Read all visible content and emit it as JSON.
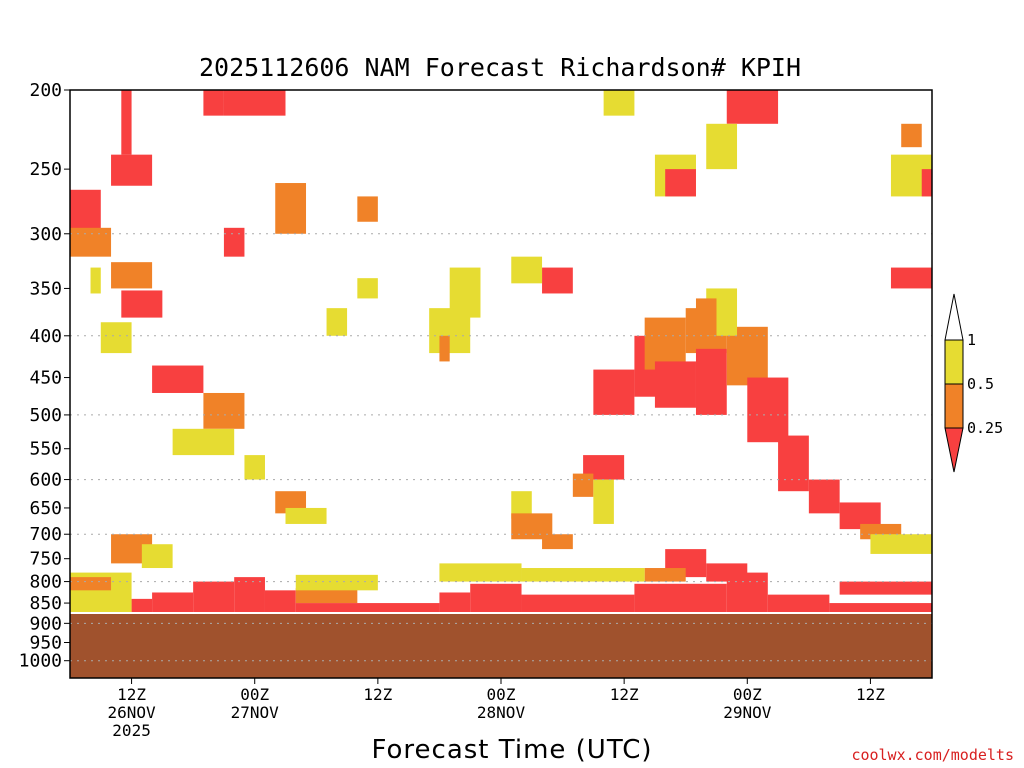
{
  "chart_data": {
    "type": "heatmap",
    "title": "2025112606 NAM Forecast Richardson# KPIH",
    "xlabel": "Forecast Time (UTC)",
    "ylabel": "",
    "credit": "coolwx.com/modelts",
    "x_range_hours": [
      0,
      84
    ],
    "y_range_hpa": [
      200,
      1050
    ],
    "y_scale": "log",
    "y_ticks": [
      "200",
      "250",
      "300",
      "350",
      "400",
      "450",
      "500",
      "550",
      "600",
      "650",
      "700",
      "750",
      "800",
      "850",
      "900",
      "950",
      "1000"
    ],
    "gridlines_hpa": [
      300,
      400,
      500,
      600,
      700,
      800,
      900,
      1000
    ],
    "x_ticks": [
      {
        "hour": 6,
        "line1": "12Z",
        "line2": "26NOV",
        "line3": "2025"
      },
      {
        "hour": 18,
        "line1": "00Z",
        "line2": "27NOV",
        "line3": ""
      },
      {
        "hour": 30,
        "line1": "12Z",
        "line2": "",
        "line3": ""
      },
      {
        "hour": 42,
        "line1": "00Z",
        "line2": "28NOV",
        "line3": ""
      },
      {
        "hour": 54,
        "line1": "12Z",
        "line2": "",
        "line3": ""
      },
      {
        "hour": 66,
        "line1": "00Z",
        "line2": "29NOV",
        "line3": ""
      },
      {
        "hour": 78,
        "line1": "12Z",
        "line2": "",
        "line3": ""
      }
    ],
    "legend": {
      "labels": [
        "1",
        "0.5",
        "0.25"
      ],
      "bins": [
        {
          "name": "0.5 to 1",
          "color": "#e6dc32"
        },
        {
          "name": "0.25 to 0.5",
          "color": "#f08228"
        },
        {
          "name": "below 0.25",
          "color": "#f84040"
        }
      ],
      "placement": "right"
    },
    "colors": {
      "ground": "#a0522d",
      "red": "#f84040",
      "orange": "#f08228",
      "yellow": "#e6dc32"
    },
    "ground_surface_hpa": 874,
    "rectangles": [
      {
        "level": "red",
        "t0": 0,
        "t1": 3,
        "p0": 265,
        "p1": 300
      },
      {
        "level": "orange",
        "t0": 0,
        "t1": 4,
        "p0": 295,
        "p1": 320
      },
      {
        "level": "red",
        "t0": 4,
        "t1": 8,
        "p0": 240,
        "p1": 262
      },
      {
        "level": "red",
        "t0": 5,
        "t1": 6,
        "p0": 200,
        "p1": 240
      },
      {
        "level": "yellow",
        "t0": 2,
        "t1": 3,
        "p0": 330,
        "p1": 355
      },
      {
        "level": "orange",
        "t0": 4,
        "t1": 8,
        "p0": 325,
        "p1": 350
      },
      {
        "level": "red",
        "t0": 5,
        "t1": 9,
        "p0": 352,
        "p1": 380
      },
      {
        "level": "yellow",
        "t0": 3,
        "t1": 6,
        "p0": 385,
        "p1": 420
      },
      {
        "level": "red",
        "t0": 8,
        "t1": 13,
        "p0": 435,
        "p1": 470
      },
      {
        "level": "orange",
        "t0": 13,
        "t1": 17,
        "p0": 470,
        "p1": 520
      },
      {
        "level": "yellow",
        "t0": 10,
        "t1": 16,
        "p0": 520,
        "p1": 560
      },
      {
        "level": "red",
        "t0": 13,
        "t1": 15,
        "p0": 200,
        "p1": 215
      },
      {
        "level": "red",
        "t0": 15,
        "t1": 21,
        "p0": 200,
        "p1": 215
      },
      {
        "level": "orange",
        "t0": 20,
        "t1": 23,
        "p0": 260,
        "p1": 300
      },
      {
        "level": "red",
        "t0": 15,
        "t1": 17,
        "p0": 295,
        "p1": 320
      },
      {
        "level": "yellow",
        "t0": 17,
        "t1": 19,
        "p0": 560,
        "p1": 600
      },
      {
        "level": "orange",
        "t0": 20,
        "t1": 23,
        "p0": 620,
        "p1": 660
      },
      {
        "level": "yellow",
        "t0": 21,
        "t1": 25,
        "p0": 650,
        "p1": 680
      },
      {
        "level": "yellow",
        "t0": 25,
        "t1": 27,
        "p0": 370,
        "p1": 400
      },
      {
        "level": "orange",
        "t0": 28,
        "t1": 30,
        "p0": 270,
        "p1": 290
      },
      {
        "level": "yellow",
        "t0": 28,
        "t1": 30,
        "p0": 340,
        "p1": 360
      },
      {
        "level": "yellow",
        "t0": 35,
        "t1": 39,
        "p0": 370,
        "p1": 420
      },
      {
        "level": "orange",
        "t0": 36,
        "t1": 37,
        "p0": 400,
        "p1": 430
      },
      {
        "level": "yellow",
        "t0": 37,
        "t1": 40,
        "p0": 330,
        "p1": 380
      },
      {
        "level": "orange",
        "t0": 4,
        "t1": 8,
        "p0": 700,
        "p1": 760
      },
      {
        "level": "yellow",
        "t0": 7,
        "t1": 10,
        "p0": 720,
        "p1": 770
      },
      {
        "level": "yellow",
        "t0": 43,
        "t1": 45,
        "p0": 620,
        "p1": 670
      },
      {
        "level": "orange",
        "t0": 43,
        "t1": 47,
        "p0": 660,
        "p1": 710
      },
      {
        "level": "orange",
        "t0": 46,
        "t1": 49,
        "p0": 700,
        "p1": 730
      },
      {
        "level": "red",
        "t0": 46,
        "t1": 49,
        "p0": 330,
        "p1": 355
      },
      {
        "level": "yellow",
        "t0": 43,
        "t1": 46,
        "p0": 320,
        "p1": 345
      },
      {
        "level": "red",
        "t0": 51,
        "t1": 55,
        "p0": 440,
        "p1": 500
      },
      {
        "level": "red",
        "t0": 55,
        "t1": 58,
        "p0": 400,
        "p1": 475
      },
      {
        "level": "orange",
        "t0": 56,
        "t1": 60,
        "p0": 380,
        "p1": 440
      },
      {
        "level": "red",
        "t0": 57,
        "t1": 61,
        "p0": 430,
        "p1": 490
      },
      {
        "level": "orange",
        "t0": 60,
        "t1": 64,
        "p0": 370,
        "p1": 420
      },
      {
        "level": "red",
        "t0": 61,
        "t1": 64,
        "p0": 415,
        "p1": 500
      },
      {
        "level": "orange",
        "t0": 64,
        "t1": 68,
        "p0": 390,
        "p1": 460
      },
      {
        "level": "red",
        "t0": 66,
        "t1": 70,
        "p0": 450,
        "p1": 540
      },
      {
        "level": "red",
        "t0": 69,
        "t1": 72,
        "p0": 530,
        "p1": 620
      },
      {
        "level": "red",
        "t0": 72,
        "t1": 75,
        "p0": 600,
        "p1": 660
      },
      {
        "level": "red",
        "t0": 75,
        "t1": 79,
        "p0": 640,
        "p1": 690
      },
      {
        "level": "orange",
        "t0": 77,
        "t1": 81,
        "p0": 680,
        "p1": 710
      },
      {
        "level": "yellow",
        "t0": 78,
        "t1": 84,
        "p0": 700,
        "p1": 740
      },
      {
        "level": "red",
        "t0": 64,
        "t1": 69,
        "p0": 200,
        "p1": 220
      },
      {
        "level": "yellow",
        "t0": 52,
        "t1": 55,
        "p0": 200,
        "p1": 215
      },
      {
        "level": "yellow",
        "t0": 57,
        "t1": 61,
        "p0": 240,
        "p1": 270
      },
      {
        "level": "red",
        "t0": 58,
        "t1": 61,
        "p0": 250,
        "p1": 270
      },
      {
        "level": "yellow",
        "t0": 62,
        "t1": 65,
        "p0": 220,
        "p1": 250
      },
      {
        "level": "orange",
        "t0": 81,
        "t1": 83,
        "p0": 220,
        "p1": 235
      },
      {
        "level": "yellow",
        "t0": 80,
        "t1": 84,
        "p0": 240,
        "p1": 270
      },
      {
        "level": "red",
        "t0": 83,
        "t1": 84,
        "p0": 250,
        "p1": 270
      },
      {
        "level": "red",
        "t0": 80,
        "t1": 84,
        "p0": 330,
        "p1": 350
      },
      {
        "level": "yellow",
        "t0": 62,
        "t1": 65,
        "p0": 350,
        "p1": 400
      },
      {
        "level": "orange",
        "t0": 61,
        "t1": 63,
        "p0": 360,
        "p1": 400
      },
      {
        "level": "red",
        "t0": 50,
        "t1": 54,
        "p0": 560,
        "p1": 600
      },
      {
        "level": "orange",
        "t0": 49,
        "t1": 51,
        "p0": 590,
        "p1": 630
      },
      {
        "level": "yellow",
        "t0": 51,
        "t1": 53,
        "p0": 600,
        "p1": 680
      },
      {
        "level": "red",
        "t0": 58,
        "t1": 62,
        "p0": 730,
        "p1": 790
      },
      {
        "level": "red",
        "t0": 62,
        "t1": 66,
        "p0": 760,
        "p1": 800
      },
      {
        "level": "orange",
        "t0": 56,
        "t1": 60,
        "p0": 770,
        "p1": 800
      }
    ],
    "ground_bands": [
      {
        "level": "red",
        "t0": 6,
        "t1": 8,
        "p0": 840,
        "p1": 874
      },
      {
        "level": "red",
        "t0": 8,
        "t1": 12,
        "p0": 825,
        "p1": 874
      },
      {
        "level": "red",
        "t0": 12,
        "t1": 16,
        "p0": 800,
        "p1": 874
      },
      {
        "level": "red",
        "t0": 16,
        "t1": 19,
        "p0": 790,
        "p1": 874
      },
      {
        "level": "red",
        "t0": 19,
        "t1": 22,
        "p0": 820,
        "p1": 874
      },
      {
        "level": "orange",
        "t0": 22,
        "t1": 28,
        "p0": 815,
        "p1": 850
      },
      {
        "level": "red",
        "t0": 22,
        "t1": 36,
        "p0": 850,
        "p1": 874
      },
      {
        "level": "red",
        "t0": 36,
        "t1": 39,
        "p0": 825,
        "p1": 874
      },
      {
        "level": "red",
        "t0": 39,
        "t1": 44,
        "p0": 805,
        "p1": 874
      },
      {
        "level": "red",
        "t0": 44,
        "t1": 55,
        "p0": 830,
        "p1": 874
      },
      {
        "level": "red",
        "t0": 55,
        "t1": 64,
        "p0": 805,
        "p1": 874
      },
      {
        "level": "red",
        "t0": 64,
        "t1": 68,
        "p0": 780,
        "p1": 874
      },
      {
        "level": "red",
        "t0": 68,
        "t1": 74,
        "p0": 830,
        "p1": 874
      },
      {
        "level": "red",
        "t0": 74,
        "t1": 84,
        "p0": 850,
        "p1": 874
      },
      {
        "level": "yellow",
        "t0": 0,
        "t1": 6,
        "p0": 780,
        "p1": 874
      },
      {
        "level": "orange",
        "t0": 0,
        "t1": 4,
        "p0": 790,
        "p1": 820
      },
      {
        "level": "yellow",
        "t0": 22,
        "t1": 30,
        "p0": 785,
        "p1": 820
      },
      {
        "level": "yellow",
        "t0": 36,
        "t1": 44,
        "p0": 760,
        "p1": 800
      },
      {
        "level": "yellow",
        "t0": 44,
        "t1": 56,
        "p0": 770,
        "p1": 800
      },
      {
        "level": "red",
        "t0": 75,
        "t1": 84,
        "p0": 800,
        "p1": 830
      }
    ]
  }
}
